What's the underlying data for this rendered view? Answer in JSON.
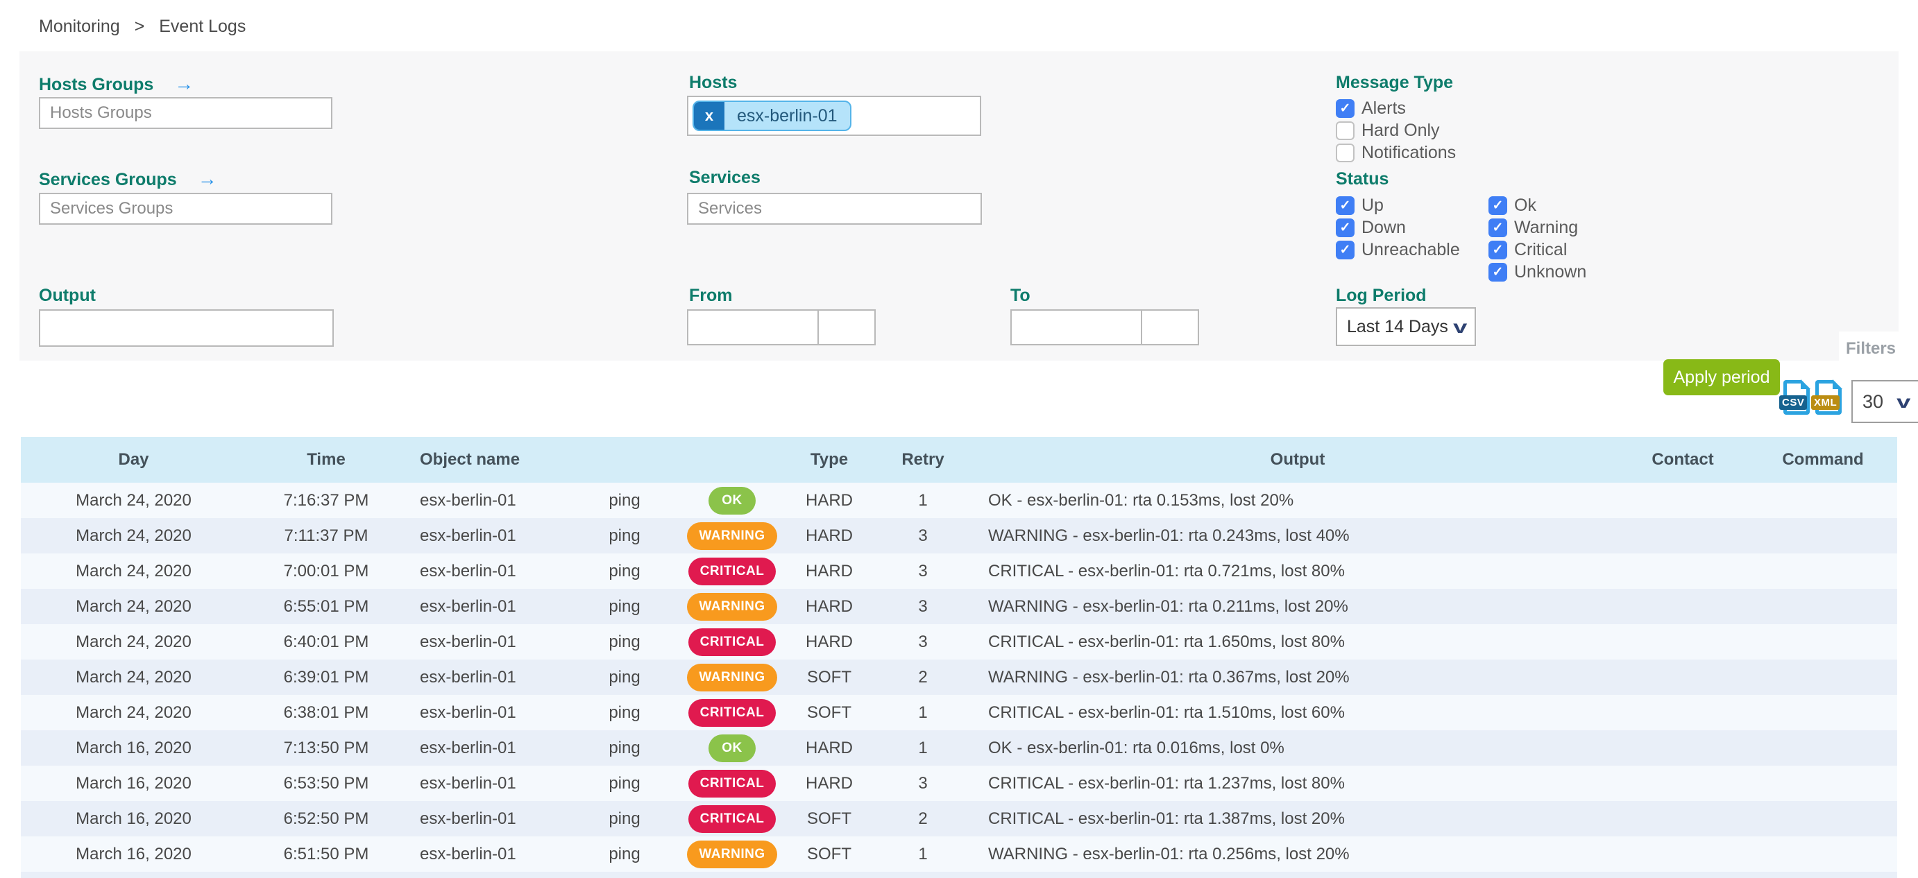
{
  "breadcrumb": {
    "items": [
      "Monitoring",
      "Event Logs"
    ],
    "separator": ">"
  },
  "filter_panel": {
    "hosts_groups_label": "Hosts Groups",
    "hosts_groups_placeholder": "Hosts Groups",
    "services_groups_label": "Services Groups",
    "services_groups_placeholder": "Services Groups",
    "hosts_label": "Hosts",
    "hosts_selected_tag": "esx-berlin-01",
    "remove_tag_glyph": "x",
    "services_label": "Services",
    "services_placeholder": "Services",
    "output_label": "Output",
    "output_value": "",
    "from_label": "From",
    "to_label": "To",
    "arrow_glyph": "→",
    "message_type_label": "Message Type",
    "message_type_options": [
      {
        "label": "Alerts",
        "checked": true
      },
      {
        "label": "Hard Only",
        "checked": false
      },
      {
        "label": "Notifications",
        "checked": false
      }
    ],
    "status_label": "Status",
    "status_options_col1": [
      {
        "label": "Up",
        "checked": true
      },
      {
        "label": "Down",
        "checked": true
      },
      {
        "label": "Unreachable",
        "checked": true
      }
    ],
    "status_options_col2": [
      {
        "label": "Ok",
        "checked": true
      },
      {
        "label": "Warning",
        "checked": true
      },
      {
        "label": "Critical",
        "checked": true
      },
      {
        "label": "Unknown",
        "checked": true
      }
    ],
    "log_period_label": "Log Period",
    "log_period_selected": "Last 14 Days",
    "apply_button_label": "Apply period",
    "filters_tab_label": "Filters"
  },
  "toolbar": {
    "csv_icon_label": "CSV",
    "xml_icon_label": "XML",
    "rows_per_page": "30"
  },
  "table": {
    "headers": {
      "day": "Day",
      "time": "Time",
      "object_name": "Object name",
      "type": "Type",
      "retry": "Retry",
      "output": "Output",
      "contact": "Contact",
      "command": "Command"
    },
    "rows": [
      {
        "day": "March 24, 2020",
        "time": "7:16:37 PM",
        "object": "esx-berlin-01",
        "service": "ping",
        "status": "OK",
        "type": "HARD",
        "retry": "1",
        "output": "OK - esx-berlin-01: rta 0.153ms, lost 20%",
        "contact": "",
        "command": ""
      },
      {
        "day": "March 24, 2020",
        "time": "7:11:37 PM",
        "object": "esx-berlin-01",
        "service": "ping",
        "status": "WARNING",
        "type": "HARD",
        "retry": "3",
        "output": "WARNING - esx-berlin-01: rta 0.243ms, lost 40%",
        "contact": "",
        "command": ""
      },
      {
        "day": "March 24, 2020",
        "time": "7:00:01 PM",
        "object": "esx-berlin-01",
        "service": "ping",
        "status": "CRITICAL",
        "type": "HARD",
        "retry": "3",
        "output": "CRITICAL - esx-berlin-01: rta 0.721ms, lost 80%",
        "contact": "",
        "command": ""
      },
      {
        "day": "March 24, 2020",
        "time": "6:55:01 PM",
        "object": "esx-berlin-01",
        "service": "ping",
        "status": "WARNING",
        "type": "HARD",
        "retry": "3",
        "output": "WARNING - esx-berlin-01: rta 0.211ms, lost 20%",
        "contact": "",
        "command": ""
      },
      {
        "day": "March 24, 2020",
        "time": "6:40:01 PM",
        "object": "esx-berlin-01",
        "service": "ping",
        "status": "CRITICAL",
        "type": "HARD",
        "retry": "3",
        "output": "CRITICAL - esx-berlin-01: rta 1.650ms, lost 80%",
        "contact": "",
        "command": ""
      },
      {
        "day": "March 24, 2020",
        "time": "6:39:01 PM",
        "object": "esx-berlin-01",
        "service": "ping",
        "status": "WARNING",
        "type": "SOFT",
        "retry": "2",
        "output": "WARNING - esx-berlin-01: rta 0.367ms, lost 20%",
        "contact": "",
        "command": ""
      },
      {
        "day": "March 24, 2020",
        "time": "6:38:01 PM",
        "object": "esx-berlin-01",
        "service": "ping",
        "status": "CRITICAL",
        "type": "SOFT",
        "retry": "1",
        "output": "CRITICAL - esx-berlin-01: rta 1.510ms, lost 60%",
        "contact": "",
        "command": ""
      },
      {
        "day": "March 16, 2020",
        "time": "7:13:50 PM",
        "object": "esx-berlin-01",
        "service": "ping",
        "status": "OK",
        "type": "HARD",
        "retry": "1",
        "output": "OK - esx-berlin-01: rta 0.016ms, lost 0%",
        "contact": "",
        "command": ""
      },
      {
        "day": "March 16, 2020",
        "time": "6:53:50 PM",
        "object": "esx-berlin-01",
        "service": "ping",
        "status": "CRITICAL",
        "type": "HARD",
        "retry": "3",
        "output": "CRITICAL - esx-berlin-01: rta 1.237ms, lost 80%",
        "contact": "",
        "command": ""
      },
      {
        "day": "March 16, 2020",
        "time": "6:52:50 PM",
        "object": "esx-berlin-01",
        "service": "ping",
        "status": "CRITICAL",
        "type": "SOFT",
        "retry": "2",
        "output": "CRITICAL - esx-berlin-01: rta 1.387ms, lost 20%",
        "contact": "",
        "command": ""
      },
      {
        "day": "March 16, 2020",
        "time": "6:51:50 PM",
        "object": "esx-berlin-01",
        "service": "ping",
        "status": "WARNING",
        "type": "SOFT",
        "retry": "1",
        "output": "WARNING - esx-berlin-01: rta 0.256ms, lost 20%",
        "contact": "",
        "command": ""
      }
    ]
  },
  "colors": {
    "accent_teal": "#0e7c6b",
    "link_blue": "#2a93e8",
    "checkbox_blue": "#3f7ef5",
    "ok_green": "#8bc34a",
    "warning_orange": "#f89a1e",
    "critical_red": "#e01a4f",
    "apply_green": "#88b917",
    "table_header_bg": "#d4edf8",
    "row_alt_bg": "#e9eff8",
    "panel_bg": "#f7f7f8"
  }
}
